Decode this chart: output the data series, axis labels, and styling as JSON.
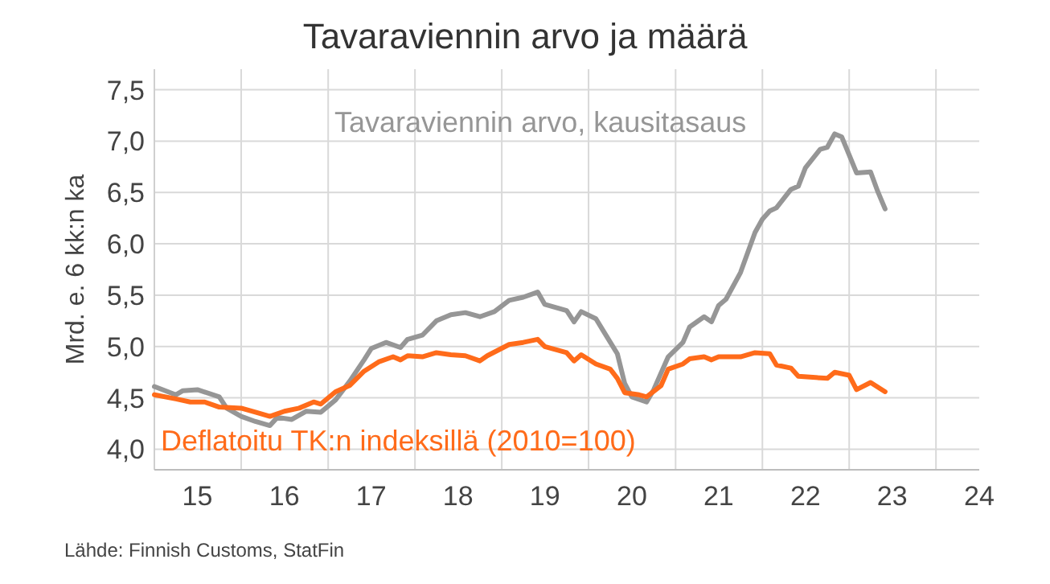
{
  "chart_data": {
    "type": "line",
    "title": "Tavaraviennin arvo ja määrä",
    "ylabel": "Mrd. e. 6 kk:n ka",
    "annotations": [
      "Lähde: Finnish Customs, StatFin"
    ],
    "xlim": [
      "2015-01",
      "2024-07"
    ],
    "ylim": [
      3.8,
      7.7
    ],
    "xticks": [
      {
        "value": "2015-01",
        "label": null
      },
      {
        "value": "2015-07",
        "label": "15"
      },
      {
        "value": "2016-01",
        "label": null
      },
      {
        "value": "2016-07",
        "label": "16"
      },
      {
        "value": "2017-01",
        "label": null
      },
      {
        "value": "2017-07",
        "label": "17"
      },
      {
        "value": "2018-01",
        "label": null
      },
      {
        "value": "2018-07",
        "label": "18"
      },
      {
        "value": "2019-01",
        "label": null
      },
      {
        "value": "2019-07",
        "label": "19"
      },
      {
        "value": "2020-01",
        "label": null
      },
      {
        "value": "2020-07",
        "label": "20"
      },
      {
        "value": "2021-01",
        "label": null
      },
      {
        "value": "2021-07",
        "label": "21"
      },
      {
        "value": "2022-01",
        "label": null
      },
      {
        "value": "2022-07",
        "label": "22"
      },
      {
        "value": "2023-01",
        "label": null
      },
      {
        "value": "2023-07",
        "label": "23"
      },
      {
        "value": "2024-01",
        "label": null
      },
      {
        "value": "2024-07",
        "label": "24"
      }
    ],
    "yticks": [
      {
        "value": 4,
        "label": "4,0"
      },
      {
        "value": 4.5,
        "label": "4,5"
      },
      {
        "value": 5,
        "label": "5,0"
      },
      {
        "value": 5.5,
        "label": "5,5"
      },
      {
        "value": 6,
        "label": "6,0"
      },
      {
        "value": 6.5,
        "label": "6,5"
      },
      {
        "value": 7,
        "label": "7,0"
      },
      {
        "value": 7.5,
        "label": "7,5"
      }
    ],
    "grid": true,
    "marker": "none",
    "line_style": "solid",
    "series": [
      {
        "name": "Tavaraviennin arvo, kausitasaus",
        "color": "#969696",
        "x": [
          "2015-01",
          "2015-04",
          "2015-05",
          "2015-07",
          "2015-10",
          "2015-11",
          "2016-01",
          "2016-03",
          "2016-05",
          "2016-06",
          "2016-08",
          "2016-10",
          "2016-12",
          "2017-02",
          "2017-04",
          "2017-06",
          "2017-07",
          "2017-09",
          "2017-11",
          "2017-12",
          "2018-02",
          "2018-04",
          "2018-06",
          "2018-08",
          "2018-10",
          "2018-12",
          "2019-02",
          "2019-04",
          "2019-06",
          "2019-07",
          "2019-10",
          "2019-11",
          "2019-12",
          "2020-02",
          "2020-03",
          "2020-05",
          "2020-06",
          "2020-07",
          "2020-09",
          "2020-10",
          "2020-12",
          "2021-02",
          "2021-03",
          "2021-05",
          "2021-06",
          "2021-07",
          "2021-08",
          "2021-10",
          "2021-12",
          "2022-01",
          "2022-02",
          "2022-03",
          "2022-05",
          "2022-06",
          "2022-07",
          "2022-09",
          "2022-10",
          "2022-11",
          "2022-12",
          "2023-02",
          "2023-04",
          "2023-05",
          "2023-06"
        ],
        "values": [
          4.61,
          4.53,
          4.57,
          4.58,
          4.51,
          4.4,
          4.32,
          4.27,
          4.23,
          4.31,
          4.29,
          4.37,
          4.36,
          4.48,
          4.66,
          4.87,
          4.98,
          5.04,
          4.99,
          5.07,
          5.11,
          5.25,
          5.31,
          5.33,
          5.29,
          5.34,
          5.45,
          5.48,
          5.53,
          5.41,
          5.35,
          5.24,
          5.34,
          5.27,
          5.16,
          4.93,
          4.64,
          4.51,
          4.46,
          4.58,
          4.9,
          5.04,
          5.19,
          5.29,
          5.24,
          5.4,
          5.46,
          5.72,
          6.11,
          6.24,
          6.32,
          6.35,
          6.53,
          6.56,
          6.74,
          6.92,
          6.94,
          7.07,
          7.04,
          6.69,
          6.7,
          6.51,
          6.34
        ]
      },
      {
        "name": "Deflatoitu TK:n indeksillä (2010=100)",
        "color": "#ff6b1a",
        "x": [
          "2015-01",
          "2015-04",
          "2015-06",
          "2015-08",
          "2015-10",
          "2016-01",
          "2016-03",
          "2016-05",
          "2016-07",
          "2016-09",
          "2016-11",
          "2016-12",
          "2017-02",
          "2017-04",
          "2017-06",
          "2017-08",
          "2017-10",
          "2017-11",
          "2017-12",
          "2018-02",
          "2018-04",
          "2018-06",
          "2018-08",
          "2018-10",
          "2018-11",
          "2019-02",
          "2019-04",
          "2019-06",
          "2019-07",
          "2019-10",
          "2019-11",
          "2019-12",
          "2020-02",
          "2020-04",
          "2020-05",
          "2020-06",
          "2020-08",
          "2020-09",
          "2020-11",
          "2020-12",
          "2021-02",
          "2021-03",
          "2021-05",
          "2021-06",
          "2021-07",
          "2021-09",
          "2021-10",
          "2021-12",
          "2022-02",
          "2022-03",
          "2022-05",
          "2022-06",
          "2022-08",
          "2022-10",
          "2022-11",
          "2023-01",
          "2023-02",
          "2023-04",
          "2023-06"
        ],
        "values": [
          4.53,
          4.49,
          4.46,
          4.46,
          4.41,
          4.4,
          4.36,
          4.32,
          4.37,
          4.4,
          4.46,
          4.44,
          4.56,
          4.62,
          4.76,
          4.85,
          4.9,
          4.87,
          4.91,
          4.9,
          4.94,
          4.92,
          4.91,
          4.86,
          4.91,
          5.02,
          5.04,
          5.07,
          5.0,
          4.94,
          4.86,
          4.92,
          4.83,
          4.78,
          4.69,
          4.55,
          4.53,
          4.51,
          4.62,
          4.78,
          4.83,
          4.88,
          4.9,
          4.87,
          4.9,
          4.9,
          4.9,
          4.94,
          4.93,
          4.82,
          4.79,
          4.71,
          4.7,
          4.69,
          4.75,
          4.72,
          4.58,
          4.65,
          4.56
        ]
      }
    ]
  }
}
